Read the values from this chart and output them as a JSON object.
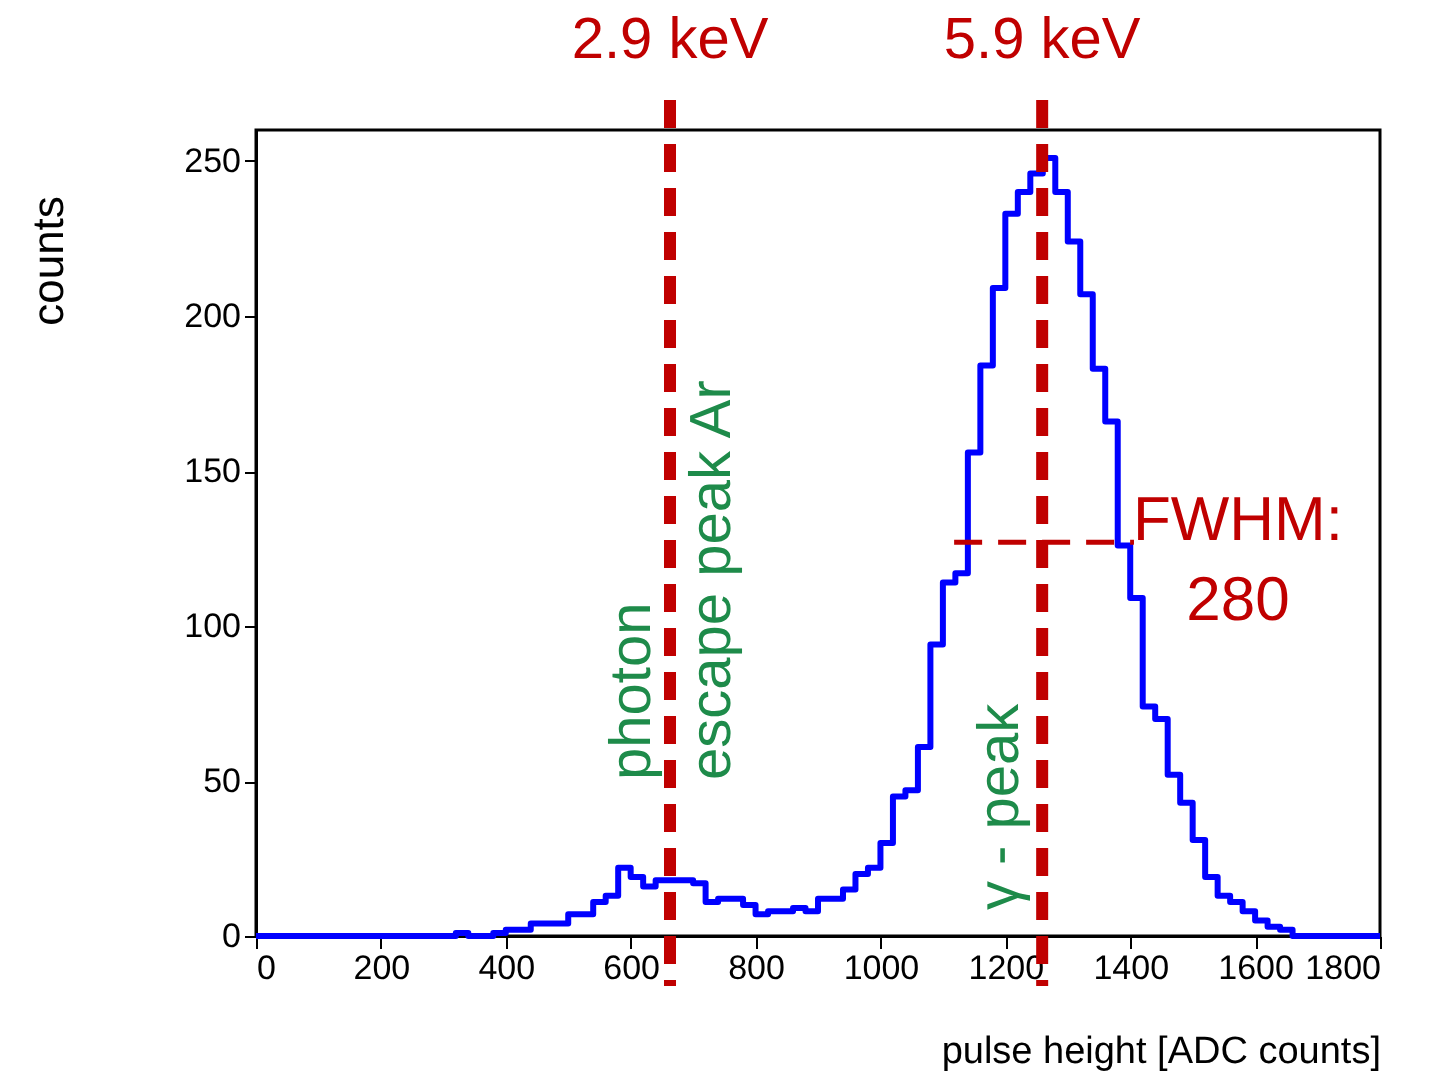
{
  "chart_data": {
    "type": "histogram",
    "xlabel": "pulse height [ADC counts]",
    "ylabel": "counts",
    "bins": [
      0,
      20,
      40,
      60,
      80,
      100,
      120,
      140,
      160,
      180,
      200,
      220,
      240,
      260,
      280,
      300,
      320,
      340,
      360,
      380,
      400,
      420,
      440,
      460,
      480,
      500,
      520,
      540,
      560,
      580,
      600,
      620,
      640,
      660,
      680,
      700,
      720,
      740,
      760,
      780,
      800,
      820,
      840,
      860,
      880,
      900,
      920,
      940,
      960,
      980,
      1000,
      1020,
      1040,
      1060,
      1080,
      1100,
      1120,
      1140,
      1160,
      1180,
      1200,
      1220,
      1240,
      1260,
      1280,
      1300,
      1320,
      1340,
      1360,
      1380,
      1400,
      1420,
      1440,
      1460,
      1480,
      1500,
      1520,
      1540,
      1560,
      1580,
      1600,
      1620,
      1640,
      1660,
      1680,
      1700,
      1720,
      1740,
      1760,
      1780,
      1800
    ],
    "series": [
      {
        "color": "#0000ff",
        "values": [
          0,
          0,
          0,
          0,
          0,
          0,
          0,
          0,
          0,
          0,
          0,
          0,
          0,
          0,
          0,
          0,
          1,
          0,
          0,
          1,
          2,
          2,
          4,
          4,
          4,
          7,
          7,
          11,
          13,
          22,
          19,
          16,
          18,
          18,
          18,
          17,
          11,
          12,
          12,
          10,
          7,
          8,
          8,
          9,
          8,
          12,
          12,
          15,
          20,
          22,
          30,
          45,
          47,
          61,
          94,
          114,
          117,
          156,
          184,
          209,
          233,
          240,
          246,
          251,
          240,
          224,
          207,
          183,
          166,
          126,
          109,
          74,
          70,
          52,
          43,
          31,
          19,
          13,
          11,
          8,
          5,
          3,
          2,
          0,
          0,
          0,
          0,
          0,
          0,
          0
        ]
      },
      {
        "type": "line",
        "name": "FWHM:\n280",
        "color": "#c00000",
        "line_style": "dashed",
        "x": [
          1118,
          1406
        ],
        "values": [
          127,
          127
        ]
      }
    ],
    "xlim": [
      0,
      1800
    ],
    "xticks": [
      0,
      200,
      400,
      600,
      800,
      1000,
      1200,
      1400,
      1600,
      1800
    ],
    "ylim": [
      0,
      260
    ],
    "yticks": [
      0,
      50,
      100,
      150,
      200,
      250
    ],
    "ref_lines": [
      {
        "axis": "x",
        "value": 663,
        "label": "2.9 keV",
        "color": "#c00000",
        "line_style": "dashed"
      },
      {
        "axis": "x",
        "value": 1259,
        "label": "5.9 keV",
        "color": "#c00000",
        "line_style": "dashed"
      }
    ],
    "annotations": [
      "photon",
      "escape peak Ar",
      "γ - peak"
    ],
    "grid": false
  }
}
